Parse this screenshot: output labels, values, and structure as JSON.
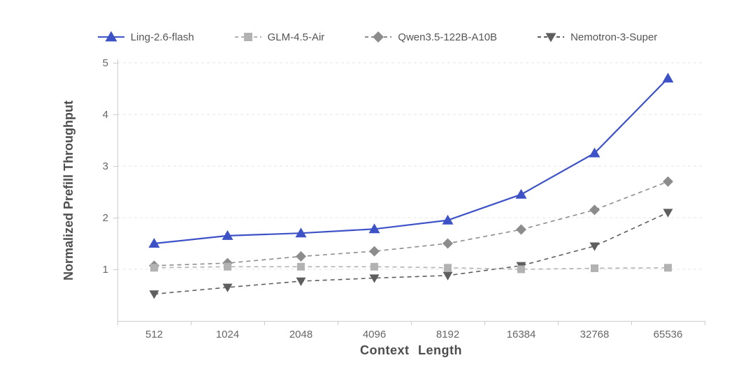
{
  "chart_data": {
    "type": "line",
    "title": "",
    "xlabel": "Context Length",
    "ylabel": "Normalized Prefill Throughput",
    "categories": [
      "512",
      "1024",
      "2048",
      "4096",
      "8192",
      "16384",
      "32768",
      "65536"
    ],
    "ylim": [
      0,
      5
    ],
    "yticks": [
      1,
      2,
      3,
      4,
      5
    ],
    "grid": "horizontal-dashed",
    "legend_position": "top",
    "colors": {
      "axis": "#cccccc",
      "grid": "#e4e4e4",
      "tick_text": "#666666",
      "title_text": "#4d4d4d"
    },
    "series": [
      {
        "name": "Ling-2.6-flash",
        "color": "#3e52c7",
        "marker": "triangle-up",
        "line": "solid",
        "values": [
          1.5,
          1.65,
          1.7,
          1.78,
          1.95,
          2.45,
          3.25,
          4.7
        ]
      },
      {
        "name": "GLM-4.5-Air",
        "color": "#b2b2b2",
        "marker": "square",
        "line": "dashed",
        "values": [
          1.03,
          1.05,
          1.05,
          1.05,
          1.03,
          1.0,
          1.02,
          1.03
        ]
      },
      {
        "name": "Qwen3.5-122B-A10B",
        "color": "#8c8c8c",
        "marker": "diamond",
        "line": "dashed",
        "values": [
          1.07,
          1.12,
          1.25,
          1.35,
          1.5,
          1.77,
          2.15,
          2.7
        ]
      },
      {
        "name": "Nemotron-3-Super",
        "color": "#5e5e5e",
        "marker": "triangle-down",
        "line": "dashed",
        "values": [
          0.52,
          0.65,
          0.77,
          0.83,
          0.88,
          1.07,
          1.45,
          2.1
        ]
      }
    ]
  }
}
